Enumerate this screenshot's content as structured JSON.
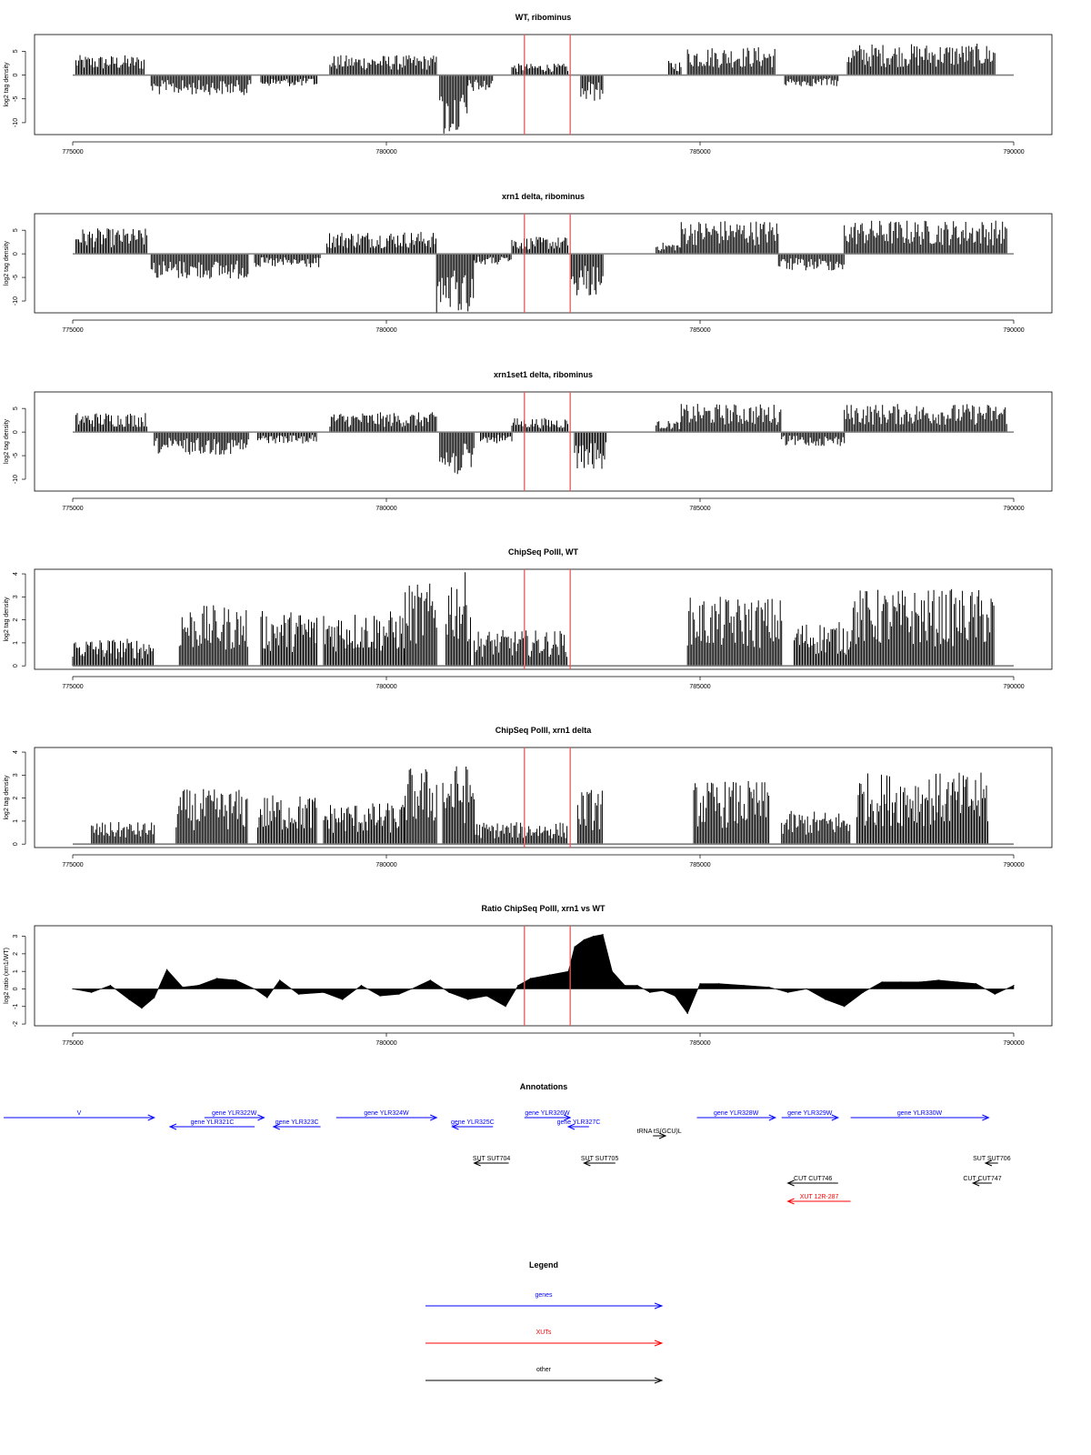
{
  "chart_data": [
    {
      "type": "bar",
      "title": "WT, ribominus",
      "ylabel": "log2 tag density",
      "xlim": [
        775000,
        790000
      ],
      "ylim": [
        -12.5,
        8.5
      ],
      "yticks": [
        -10,
        -5,
        0,
        5
      ],
      "xticks": [
        "775000",
        "780000",
        "785000",
        "790000"
      ],
      "baseline": 0,
      "markers": [
        782200,
        782930
      ],
      "segments": [
        {
          "start": 775050,
          "end": 776150,
          "value": 3.5
        },
        {
          "start": 776250,
          "end": 777850,
          "value": -3.5
        },
        {
          "start": 778000,
          "end": 778900,
          "value": -2.0
        },
        {
          "start": 779100,
          "end": 780800,
          "value": 3.5
        },
        {
          "start": 780850,
          "end": 781300,
          "value": -11.0
        },
        {
          "start": 781300,
          "end": 781700,
          "value": -3.0
        },
        {
          "start": 782000,
          "end": 782900,
          "value": 2.0
        },
        {
          "start": 783100,
          "end": 783450,
          "value": -4.5
        },
        {
          "start": 784500,
          "end": 784700,
          "value": 2.5
        },
        {
          "start": 784800,
          "end": 786200,
          "value": 5.0
        },
        {
          "start": 786350,
          "end": 787200,
          "value": -2.0
        },
        {
          "start": 787350,
          "end": 789700,
          "value": 5.5
        }
      ]
    },
    {
      "type": "bar",
      "title": "xrn1 delta, ribominus",
      "ylabel": "log2 tag density",
      "xlim": [
        775000,
        790000
      ],
      "ylim": [
        -12.5,
        8.5
      ],
      "yticks": [
        -10,
        -5,
        0,
        5
      ],
      "xticks": [
        "775000",
        "780000",
        "785000",
        "790000"
      ],
      "baseline": 0,
      "markers": [
        782200,
        782930
      ],
      "segments": [
        {
          "start": 775050,
          "end": 776200,
          "value": 4.5
        },
        {
          "start": 776250,
          "end": 777800,
          "value": -4.5
        },
        {
          "start": 777900,
          "end": 778950,
          "value": -2.5
        },
        {
          "start": 779050,
          "end": 780800,
          "value": 4.0
        },
        {
          "start": 780800,
          "end": 781400,
          "value": -10.5
        },
        {
          "start": 781400,
          "end": 782000,
          "value": -2.0
        },
        {
          "start": 782000,
          "end": 782900,
          "value": 3.0
        },
        {
          "start": 782950,
          "end": 783450,
          "value": -7.5
        },
        {
          "start": 784300,
          "end": 784700,
          "value": 2.0
        },
        {
          "start": 784700,
          "end": 786250,
          "value": 6.0
        },
        {
          "start": 786250,
          "end": 787300,
          "value": -3.0
        },
        {
          "start": 787300,
          "end": 789900,
          "value": 6.0
        }
      ]
    },
    {
      "type": "bar",
      "title": "xrn1set1 delta, ribominus",
      "ylabel": "log2 tag density",
      "xlim": [
        775000,
        790000
      ],
      "ylim": [
        -12.5,
        8.5
      ],
      "yticks": [
        -10,
        -5,
        0,
        5
      ],
      "xticks": [
        "775000",
        "780000",
        "785000",
        "790000"
      ],
      "baseline": 0,
      "markers": [
        782200,
        782930
      ],
      "segments": [
        {
          "start": 775050,
          "end": 776200,
          "value": 3.5
        },
        {
          "start": 776300,
          "end": 777800,
          "value": -4.0
        },
        {
          "start": 777950,
          "end": 778900,
          "value": -2.0
        },
        {
          "start": 779100,
          "end": 780800,
          "value": 3.5
        },
        {
          "start": 780850,
          "end": 781400,
          "value": -8.0
        },
        {
          "start": 781500,
          "end": 782000,
          "value": -2.0
        },
        {
          "start": 782000,
          "end": 782900,
          "value": 2.5
        },
        {
          "start": 783000,
          "end": 783500,
          "value": -7.0
        },
        {
          "start": 784300,
          "end": 784700,
          "value": 2.0
        },
        {
          "start": 784700,
          "end": 786300,
          "value": 5.0
        },
        {
          "start": 786300,
          "end": 787300,
          "value": -2.5
        },
        {
          "start": 787300,
          "end": 789900,
          "value": 5.0
        }
      ]
    },
    {
      "type": "bar",
      "title": "ChipSeq PolII, WT",
      "ylabel": "log2 tag density",
      "xlim": [
        775000,
        790000
      ],
      "ylim": [
        -0.15,
        4.2
      ],
      "yticks": [
        0,
        1,
        2,
        3,
        4
      ],
      "xticks": [
        "775000",
        "780000",
        "785000",
        "790000"
      ],
      "baseline": 0,
      "markers": [
        782200,
        782930
      ],
      "segments": [
        {
          "start": 775000,
          "end": 776300,
          "value": 1.0
        },
        {
          "start": 776700,
          "end": 777800,
          "value": 2.2
        },
        {
          "start": 778000,
          "end": 778900,
          "value": 2.0
        },
        {
          "start": 779000,
          "end": 780300,
          "value": 2.0
        },
        {
          "start": 780300,
          "end": 780800,
          "value": 3.0
        },
        {
          "start": 780950,
          "end": 781350,
          "value": 3.4
        },
        {
          "start": 781400,
          "end": 782900,
          "value": 1.3
        },
        {
          "start": 784800,
          "end": 786300,
          "value": 2.5
        },
        {
          "start": 786500,
          "end": 787400,
          "value": 1.6
        },
        {
          "start": 787400,
          "end": 789700,
          "value": 2.8
        }
      ]
    },
    {
      "type": "bar",
      "title": "ChipSeq PolII, xrn1 delta",
      "ylabel": "log2 tag density",
      "xlim": [
        775000,
        790000
      ],
      "ylim": [
        -0.15,
        4.2
      ],
      "yticks": [
        0,
        1,
        2,
        3,
        4
      ],
      "xticks": [
        "775000",
        "780000",
        "785000",
        "790000"
      ],
      "baseline": 0,
      "markers": [
        782200,
        782930
      ],
      "segments": [
        {
          "start": 775300,
          "end": 776300,
          "value": 0.8
        },
        {
          "start": 776650,
          "end": 777800,
          "value": 2.0
        },
        {
          "start": 777950,
          "end": 778900,
          "value": 1.8
        },
        {
          "start": 779000,
          "end": 780300,
          "value": 1.5
        },
        {
          "start": 780300,
          "end": 780800,
          "value": 2.8
        },
        {
          "start": 780900,
          "end": 781400,
          "value": 2.9
        },
        {
          "start": 781400,
          "end": 782900,
          "value": 0.8
        },
        {
          "start": 783050,
          "end": 783450,
          "value": 2.0
        },
        {
          "start": 784900,
          "end": 786100,
          "value": 2.3
        },
        {
          "start": 786300,
          "end": 787400,
          "value": 1.2
        },
        {
          "start": 787500,
          "end": 789600,
          "value": 2.6
        }
      ]
    },
    {
      "type": "area",
      "title": "Ratio ChipSeq PolII, xrn1 vs WT",
      "ylabel": "log2 ratio (xrn1/WT)",
      "xlim": [
        775000,
        790000
      ],
      "ylim": [
        -2.1,
        3.6
      ],
      "yticks": [
        -2,
        -1,
        0,
        1,
        2,
        3
      ],
      "xticks": [
        "775000",
        "780000",
        "785000",
        "790000"
      ],
      "baseline": 0,
      "markers": [
        782200,
        782930
      ],
      "x": [
        775000,
        775300,
        775600,
        775900,
        776100,
        776300,
        776500,
        776750,
        777000,
        777300,
        777600,
        777900,
        778100,
        778300,
        778600,
        779000,
        779300,
        779600,
        779900,
        780200,
        780400,
        780700,
        781000,
        781300,
        781600,
        781900,
        782100,
        782300,
        782600,
        782900,
        783000,
        783150,
        783300,
        783450,
        783600,
        783800,
        784000,
        784200,
        784400,
        784600,
        784800,
        785000,
        785300,
        785700,
        786100,
        786400,
        786700,
        787000,
        787300,
        787600,
        787900,
        788200,
        788500,
        788800,
        789100,
        789400,
        789700,
        790000
      ],
      "y": [
        0.0,
        -0.2,
        0.2,
        -0.6,
        -1.1,
        -0.5,
        1.1,
        0.1,
        0.2,
        0.6,
        0.5,
        0.0,
        -0.5,
        0.5,
        -0.3,
        -0.2,
        -0.6,
        0.2,
        -0.4,
        -0.3,
        0.0,
        0.5,
        -0.2,
        -0.6,
        -0.4,
        -1.0,
        0.2,
        0.6,
        0.8,
        1.0,
        2.4,
        2.8,
        3.0,
        3.1,
        1.0,
        0.2,
        0.2,
        -0.2,
        -0.1,
        -0.4,
        -1.4,
        0.3,
        0.3,
        0.2,
        0.1,
        -0.2,
        0.0,
        -0.6,
        -1.0,
        -0.2,
        0.4,
        0.4,
        0.4,
        0.5,
        0.4,
        0.3,
        -0.3,
        0.2
      ]
    }
  ],
  "annotations": {
    "title": "Annotations",
    "features": [
      {
        "label": "V",
        "start": 773900,
        "end": 776300,
        "strand": "+",
        "row": 0,
        "type": "gene"
      },
      {
        "label": "gene YLR321C",
        "start": 776550,
        "end": 777900,
        "strand": "-",
        "row": 1,
        "type": "gene"
      },
      {
        "label": "gene YLR322W",
        "start": 777100,
        "end": 778050,
        "strand": "+",
        "row": 0,
        "type": "gene"
      },
      {
        "label": "gene YLR323C",
        "start": 778200,
        "end": 778950,
        "strand": "-",
        "row": 1,
        "type": "gene"
      },
      {
        "label": "gene YLR324W",
        "start": 779200,
        "end": 780800,
        "strand": "+",
        "row": 0,
        "type": "gene"
      },
      {
        "label": "gene YLR325C",
        "start": 781050,
        "end": 781700,
        "strand": "-",
        "row": 1,
        "type": "gene"
      },
      {
        "label": "gene YLR326W",
        "start": 782200,
        "end": 782930,
        "strand": "+",
        "row": 0,
        "type": "gene"
      },
      {
        "label": "gene YLR327C",
        "start": 782900,
        "end": 783230,
        "strand": "-",
        "row": 1,
        "type": "gene"
      },
      {
        "label": "tRNA tS(GCU)L",
        "start": 784250,
        "end": 784450,
        "strand": "+",
        "row": 2,
        "type": "other"
      },
      {
        "label": "gene YLR328W",
        "start": 784950,
        "end": 786200,
        "strand": "+",
        "row": 0,
        "type": "gene"
      },
      {
        "label": "gene YLR329W",
        "start": 786300,
        "end": 787200,
        "strand": "+",
        "row": 0,
        "type": "gene"
      },
      {
        "label": "gene YLR330W",
        "start": 787400,
        "end": 789600,
        "strand": "+",
        "row": 0,
        "type": "gene"
      },
      {
        "label": "SUT SUT704",
        "start": 781400,
        "end": 781950,
        "strand": "-",
        "row": 3,
        "type": "other"
      },
      {
        "label": "SUT SUT705",
        "start": 783150,
        "end": 783650,
        "strand": "-",
        "row": 3,
        "type": "other"
      },
      {
        "label": "SUT SUT706",
        "start": 789550,
        "end": 789750,
        "strand": "-",
        "row": 3,
        "type": "other"
      },
      {
        "label": "CUT CUT746",
        "start": 786400,
        "end": 787200,
        "strand": "-",
        "row": 4,
        "type": "other"
      },
      {
        "label": "CUT CUT747",
        "start": 789350,
        "end": 789650,
        "strand": "-",
        "row": 4,
        "type": "other"
      },
      {
        "label": "XUT 12R-287",
        "start": 786400,
        "end": 787400,
        "strand": "-",
        "row": 5,
        "type": "xut"
      }
    ]
  },
  "legend": {
    "title": "Legend",
    "items": [
      {
        "label": "genes",
        "color": "#0000ff"
      },
      {
        "label": "XUTs",
        "color": "#ff0000"
      },
      {
        "label": "other",
        "color": "#000000"
      }
    ]
  },
  "colors": {
    "gene": "#0000ff",
    "xut": "#ff0000",
    "other": "#000000",
    "marker": "#e8585b",
    "baseline": "#7f7f7f",
    "signal": "#000000"
  }
}
